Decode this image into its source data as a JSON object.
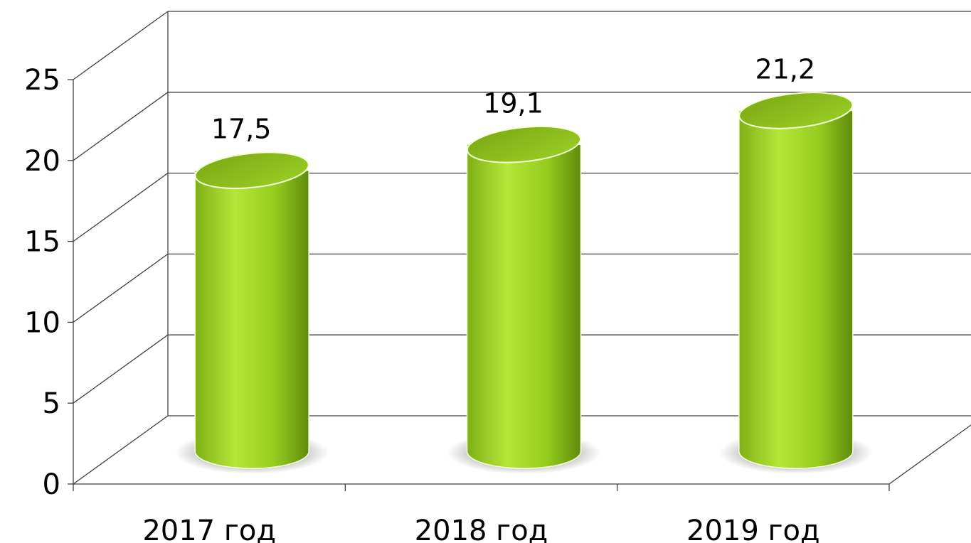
{
  "chart_data": {
    "type": "bar",
    "bar_shape": "cylinder",
    "categories": [
      "2017 год",
      "2018 год",
      "2019 год"
    ],
    "values": [
      17.5,
      19.1,
      21.2
    ],
    "data_labels": [
      "17,5",
      "19,1",
      "21,2"
    ],
    "ylim": [
      0,
      25
    ],
    "y_ticks": [
      0,
      5,
      10,
      15,
      20,
      25
    ],
    "grid": true,
    "legend": "none",
    "colors": {
      "bar_light": "#b5e63a",
      "bar_mid": "#96cc1f",
      "bar_dark": "#6a9a10",
      "bar_top": "#86b81a",
      "grid": "#404040"
    }
  }
}
